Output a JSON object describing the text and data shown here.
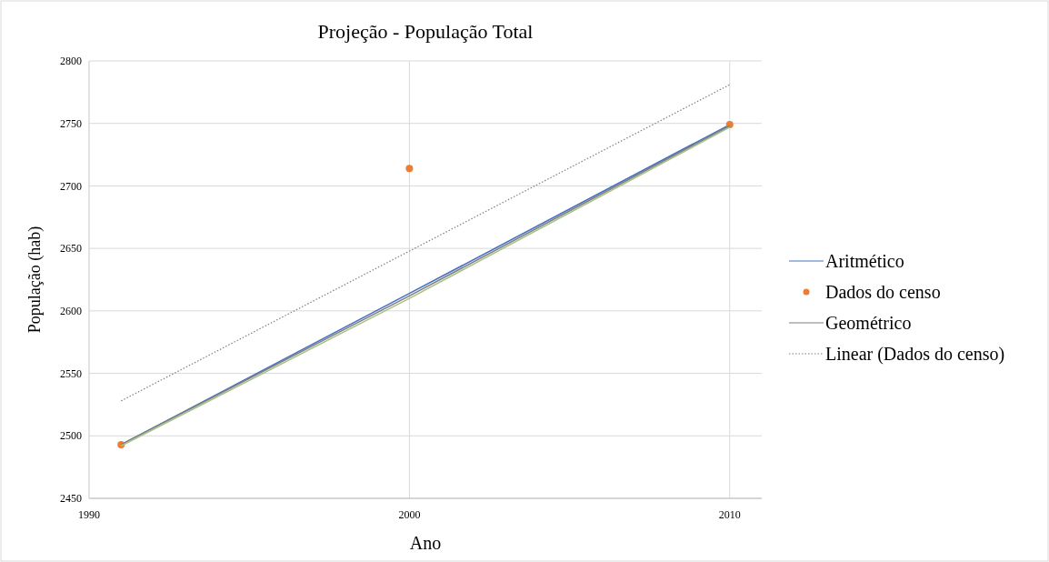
{
  "chart_data": {
    "type": "line",
    "title": "Projeção - População Total",
    "xlabel": "Ano",
    "ylabel": "População (hab)",
    "xlim": [
      1990,
      2011
    ],
    "xticks": [
      1990,
      2000,
      2010
    ],
    "ylim": [
      2450,
      2800
    ],
    "yticks": [
      2450,
      2500,
      2550,
      2600,
      2650,
      2700,
      2750,
      2800
    ],
    "grid": true,
    "legend": "right",
    "series": [
      {
        "name": "Aritmético",
        "color": "#4472c4",
        "x": [
          1991,
          2000,
          2010
        ],
        "values": [
          2493,
          2614,
          2749
        ]
      },
      {
        "name": "Dados do censo",
        "type": "scatter",
        "color": "#ed7d31",
        "marker": "circle",
        "x": [
          1991,
          2000,
          2010
        ],
        "values": [
          2493,
          2714,
          2749
        ]
      },
      {
        "name": "Geométrico",
        "color": "#7f7f7f",
        "x": [
          1991,
          2000,
          2010
        ],
        "values": [
          2493,
          2612,
          2748
        ]
      },
      {
        "name": "Linear (Dados do censo)",
        "color": "#7f7f7f",
        "line_style": "dotted",
        "x": [
          1991,
          2010
        ],
        "values": [
          2528,
          2781
        ]
      },
      {
        "color": "#a9c08a",
        "x": [
          1991,
          2000,
          2010
        ],
        "values": [
          2492,
          2610,
          2747
        ]
      }
    ]
  }
}
